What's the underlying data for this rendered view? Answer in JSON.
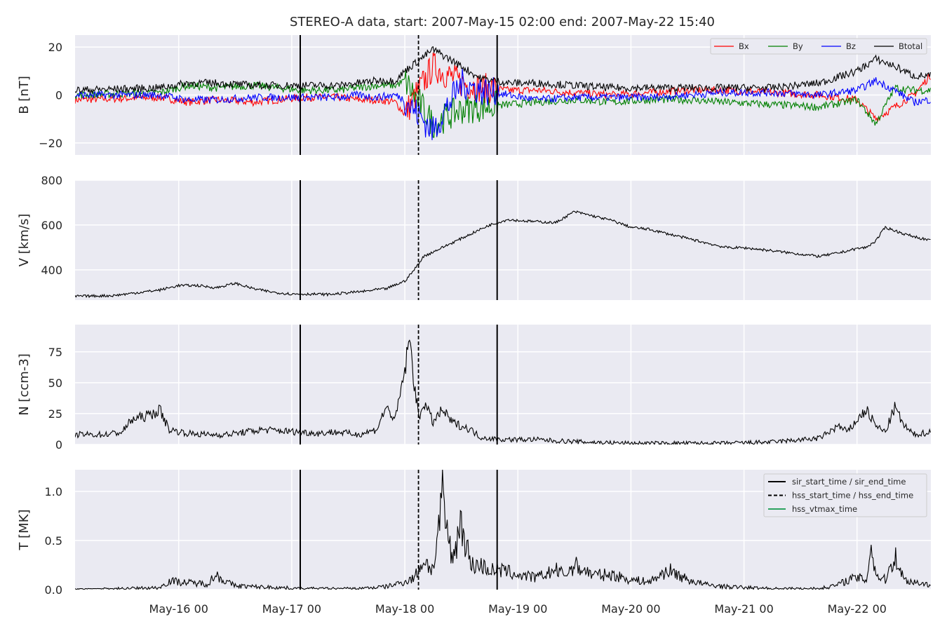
{
  "title": "STEREO-A data, start: 2007-May-15 02:00  end: 2007-May-22 15:40",
  "colors": {
    "background": "#eaeaf2",
    "grid": "#ffffff",
    "bx": "#ff0000",
    "by": "#008000",
    "bz": "#0000ff",
    "btotal": "#000000",
    "vtmax": "#2ca25f"
  },
  "x_axis": {
    "ticks": [
      "May-16 00",
      "May-17 00",
      "May-18 00",
      "May-19 00",
      "May-20 00",
      "May-21 00",
      "May-22 00"
    ],
    "range_hours_from_may15_00": [
      2,
      183.67
    ]
  },
  "chart_data": [
    {
      "type": "line",
      "ylabel": "B [nT]",
      "ylim": [
        -25,
        25
      ],
      "yticks": [
        "20",
        "0",
        "−20"
      ],
      "ytick_values": [
        20,
        0,
        -20
      ],
      "legend": {
        "placement": "top-right",
        "entries": [
          "Bx",
          "By",
          "Bz",
          "Btotal"
        ]
      },
      "series": [
        {
          "name": "Bx",
          "color": "#ff0000",
          "x": [
            2,
            20,
            26,
            32,
            40,
            50,
            58,
            62,
            66,
            70,
            72,
            78,
            84,
            88,
            94,
            100,
            108,
            116,
            124,
            132,
            140,
            150,
            160,
            168,
            172,
            176,
            180,
            183.5
          ],
          "y": [
            -2,
            -1,
            -3,
            -2,
            -3,
            -1,
            -1,
            -2,
            -2,
            -3,
            -8,
            12,
            5,
            3,
            2,
            2,
            1,
            0,
            1,
            2,
            2,
            1,
            0,
            -2,
            -10,
            -5,
            0,
            8
          ]
        },
        {
          "name": "By",
          "color": "#008000",
          "x": [
            2,
            20,
            26,
            32,
            40,
            50,
            58,
            62,
            66,
            70,
            72,
            78,
            84,
            88,
            94,
            100,
            108,
            116,
            124,
            132,
            140,
            150,
            160,
            168,
            172,
            176,
            180,
            183.5
          ],
          "y": [
            0,
            1,
            4,
            3,
            4,
            2,
            2,
            3,
            4,
            4,
            6,
            -12,
            -6,
            -5,
            -4,
            -3,
            -2,
            -3,
            -2,
            -2,
            -3,
            -4,
            -5,
            -2,
            -12,
            3,
            2,
            2
          ]
        },
        {
          "name": "Bz",
          "color": "#0000ff",
          "x": [
            2,
            20,
            26,
            32,
            40,
            50,
            58,
            62,
            66,
            70,
            72,
            78,
            84,
            88,
            94,
            100,
            108,
            116,
            124,
            132,
            140,
            150,
            160,
            168,
            172,
            176,
            180,
            183.5
          ],
          "y": [
            0,
            0,
            -2,
            -2,
            -1,
            -1,
            -1,
            0,
            -1,
            0,
            -2,
            -15,
            5,
            2,
            0,
            -2,
            -1,
            -1,
            -1,
            0,
            1,
            1,
            0,
            2,
            6,
            2,
            -3,
            -2
          ]
        },
        {
          "name": "Btotal",
          "color": "#000000",
          "x": [
            2,
            20,
            26,
            32,
            40,
            50,
            58,
            62,
            66,
            70,
            72,
            78,
            84,
            88,
            94,
            100,
            108,
            116,
            124,
            132,
            140,
            150,
            160,
            168,
            172,
            176,
            180,
            183.5
          ],
          "y": [
            2,
            3,
            5,
            5,
            4,
            4,
            4,
            5,
            6,
            6,
            10,
            19,
            12,
            7,
            5,
            5,
            4,
            3,
            3,
            3,
            3,
            3,
            5,
            10,
            15,
            12,
            8,
            8
          ]
        }
      ]
    },
    {
      "type": "line",
      "ylabel": "V [km/s]",
      "ylim": [
        265,
        800
      ],
      "yticks": [
        "800",
        "600",
        "400"
      ],
      "ytick_values": [
        800,
        600,
        400
      ],
      "series": [
        {
          "color": "#000000",
          "x": [
            2,
            10,
            16,
            20,
            24,
            28,
            32,
            36,
            40,
            44,
            48,
            52,
            56,
            60,
            64,
            66,
            68,
            72,
            74,
            76,
            78,
            80,
            82,
            84,
            86,
            90,
            94,
            96,
            100,
            104,
            108,
            112,
            116,
            120,
            124,
            128,
            132,
            136,
            140,
            144,
            148,
            152,
            156,
            160,
            164,
            168,
            170,
            172,
            174,
            178,
            183.5
          ],
          "y": [
            282,
            285,
            300,
            310,
            330,
            330,
            320,
            340,
            315,
            300,
            292,
            292,
            290,
            298,
            305,
            312,
            315,
            350,
            400,
            460,
            480,
            500,
            520,
            540,
            560,
            600,
            625,
            620,
            615,
            610,
            660,
            640,
            620,
            590,
            580,
            560,
            540,
            520,
            500,
            498,
            490,
            480,
            470,
            460,
            475,
            495,
            500,
            530,
            590,
            560,
            530
          ]
        }
      ]
    },
    {
      "type": "line",
      "ylabel": "N [ccm-3]",
      "ylim": [
        0,
        97
      ],
      "yticks": [
        "75",
        "50",
        "25",
        "0"
      ],
      "ytick_values": [
        75,
        50,
        25,
        0
      ],
      "series": [
        {
          "color": "#000000",
          "x": [
            2,
            8,
            12,
            14,
            18,
            20,
            22,
            26,
            30,
            34,
            38,
            42,
            46,
            50,
            54,
            56,
            58,
            62,
            66,
            68,
            70,
            72,
            73,
            74,
            75,
            76,
            78,
            80,
            82,
            84,
            86,
            88,
            90,
            92,
            96,
            100,
            104,
            110,
            120,
            130,
            140,
            150,
            160,
            164,
            166,
            168,
            170,
            172,
            174,
            176,
            178,
            180,
            183.5
          ],
          "y": [
            8,
            8,
            10,
            20,
            24,
            28,
            12,
            9,
            8,
            8,
            10,
            12,
            11,
            10,
            9,
            10,
            10,
            8,
            12,
            30,
            20,
            60,
            85,
            50,
            20,
            35,
            18,
            28,
            18,
            15,
            12,
            6,
            5,
            4,
            4,
            4,
            3,
            2,
            1,
            1,
            1,
            2,
            5,
            15,
            10,
            20,
            28,
            15,
            10,
            30,
            15,
            8,
            10
          ]
        }
      ]
    },
    {
      "type": "line",
      "ylabel": "T [MK]",
      "ylim": [
        0,
        1.22
      ],
      "yticks": [
        "1.0",
        "0.5",
        "0.0"
      ],
      "ytick_values": [
        1.0,
        0.5,
        0.0
      ],
      "legend": {
        "placement": "top-right",
        "entries": [
          "sir_start_time / sir_end_time",
          "hss_start_time / hss_end_time",
          "hss_vtmax_time"
        ]
      },
      "series": [
        {
          "color": "#000000",
          "x": [
            2,
            12,
            20,
            22,
            26,
            30,
            32,
            34,
            36,
            40,
            46,
            50,
            56,
            62,
            68,
            72,
            74,
            76,
            78,
            80,
            82,
            84,
            86,
            88,
            90,
            92,
            94,
            96,
            100,
            104,
            106,
            108,
            112,
            116,
            120,
            124,
            128,
            132,
            136,
            140,
            150,
            160,
            164,
            166,
            168,
            170,
            171,
            172,
            174,
            176,
            178,
            180,
            183.5
          ],
          "y": [
            0.0,
            0.01,
            0.02,
            0.09,
            0.07,
            0.06,
            0.15,
            0.08,
            0.04,
            0.03,
            0.02,
            0.01,
            0.01,
            0.01,
            0.03,
            0.08,
            0.12,
            0.3,
            0.2,
            0.9,
            0.3,
            0.7,
            0.25,
            0.25,
            0.2,
            0.2,
            0.18,
            0.15,
            0.12,
            0.2,
            0.15,
            0.25,
            0.15,
            0.15,
            0.1,
            0.08,
            0.2,
            0.1,
            0.05,
            0.03,
            0.01,
            0.01,
            0.05,
            0.1,
            0.12,
            0.1,
            0.45,
            0.15,
            0.1,
            0.35,
            0.1,
            0.08,
            0.05
          ]
        }
      ]
    }
  ],
  "event_lines": {
    "sir_hours": [
      49.8,
      91.6
    ],
    "hss_hours": [
      74.9
    ]
  }
}
